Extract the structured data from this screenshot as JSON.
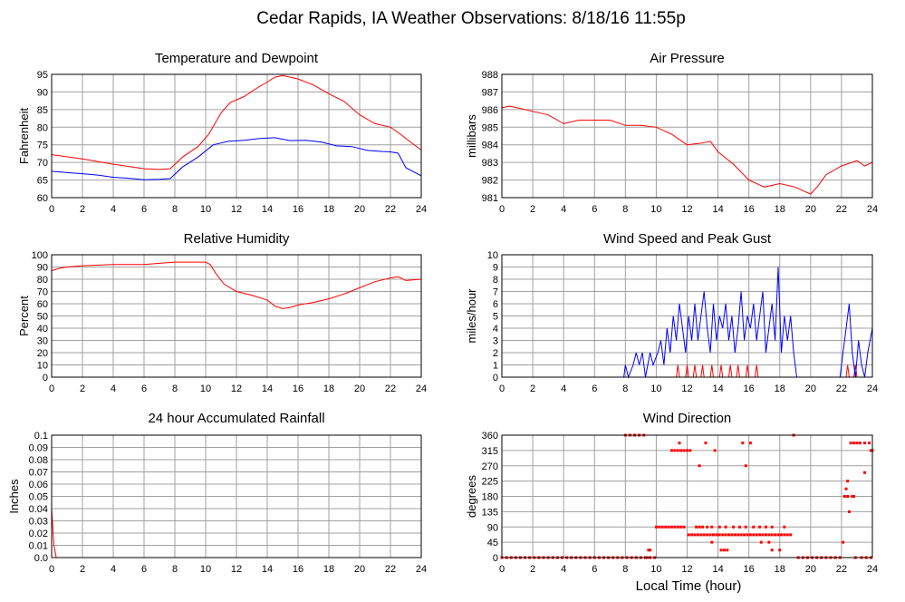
{
  "page": {
    "title": "Cedar Rapids, IA Weather Observations: 8/18/16 11:55p",
    "xlabel": "Local Time (hour)"
  },
  "colors": {
    "primary": "#ff0000",
    "secondary": "#0000ff",
    "grid": "#a0a0a0",
    "frame": "#000000"
  },
  "chart_data": [
    {
      "id": "temperature",
      "type": "line",
      "title": "Temperature and Dewpoint",
      "xlabel": "",
      "ylabel": "Fahrenheit",
      "xlim": [
        0,
        24
      ],
      "ylim": [
        60,
        95
      ],
      "xticks": [
        0,
        2,
        4,
        6,
        8,
        10,
        12,
        14,
        16,
        18,
        20,
        22,
        24
      ],
      "yticks": [
        60,
        65,
        70,
        75,
        80,
        85,
        90,
        95
      ],
      "grid": true,
      "series": [
        {
          "color": "#ff0000",
          "x": [
            0,
            2,
            4,
            6,
            7,
            7.7,
            8.5,
            9.5,
            10.2,
            11,
            11.6,
            12.5,
            13.3,
            14,
            14.5,
            15,
            15.5,
            16,
            17,
            18,
            19,
            20,
            21,
            22,
            22.5,
            23.3,
            24
          ],
          "y": [
            72.2,
            71,
            69.5,
            68.2,
            68,
            68.2,
            71.5,
            74.5,
            78,
            84,
            87,
            88.7,
            91,
            92.8,
            94.2,
            94.7,
            94.2,
            93.7,
            92,
            89.5,
            87.3,
            83.5,
            81,
            80,
            78.5,
            75.8,
            73.5
          ]
        },
        {
          "color": "#0000ff",
          "x": [
            0,
            1,
            2,
            3,
            4,
            5,
            6,
            7,
            7.7,
            8.5,
            9.5,
            10.5,
            11.5,
            12.5,
            13.5,
            14.5,
            15.5,
            16.5,
            17.5,
            18.5,
            19.5,
            20.5,
            21.5,
            22,
            22.5,
            23,
            24
          ],
          "y": [
            67.5,
            67.1,
            66.8,
            66.4,
            65.8,
            65.5,
            65.1,
            65.2,
            65.4,
            68.7,
            71.5,
            75,
            76,
            76.3,
            76.8,
            77,
            76.2,
            76.3,
            75.8,
            74.7,
            74.5,
            73.4,
            73.1,
            73,
            72.6,
            68.5,
            66.2
          ]
        }
      ]
    },
    {
      "id": "pressure",
      "type": "line",
      "title": "Air Pressure",
      "xlabel": "",
      "ylabel": "millibars",
      "xlim": [
        0,
        24
      ],
      "ylim": [
        981,
        988
      ],
      "xticks": [
        0,
        2,
        4,
        6,
        8,
        10,
        12,
        14,
        16,
        18,
        20,
        22,
        24
      ],
      "yticks": [
        981,
        982,
        983,
        984,
        985,
        986,
        987,
        988
      ],
      "grid": true,
      "series": [
        {
          "color": "#ff0000",
          "x": [
            0,
            0.5,
            1,
            2,
            3,
            4,
            5,
            6,
            7,
            8,
            9,
            10,
            11,
            12,
            13,
            13.5,
            14,
            15,
            16,
            17,
            18,
            19,
            20,
            20.5,
            21,
            22,
            23,
            23.5,
            24
          ],
          "y": [
            986.1,
            986.2,
            986.1,
            985.9,
            985.7,
            985.2,
            985.4,
            985.4,
            985.4,
            985.1,
            985.1,
            985,
            984.6,
            984,
            984.1,
            984.2,
            983.6,
            982.9,
            982,
            981.6,
            981.8,
            981.6,
            981.2,
            981.7,
            982.3,
            982.8,
            983.1,
            982.8,
            983
          ]
        }
      ]
    },
    {
      "id": "humidity",
      "type": "line",
      "title": "Relative Humidity",
      "xlabel": "",
      "ylabel": "Percent",
      "xlim": [
        0,
        24
      ],
      "ylim": [
        0,
        100
      ],
      "xticks": [
        0,
        2,
        4,
        6,
        8,
        10,
        12,
        14,
        16,
        18,
        20,
        22,
        24
      ],
      "yticks": [
        0,
        10,
        20,
        30,
        40,
        50,
        60,
        70,
        80,
        90,
        100
      ],
      "grid": true,
      "series": [
        {
          "color": "#ff0000",
          "x": [
            0,
            0.5,
            1,
            2,
            4,
            6,
            7,
            8,
            9,
            10,
            10.3,
            10.7,
            11.2,
            12,
            13,
            14,
            14.5,
            15,
            15.5,
            16,
            17,
            18,
            19,
            20,
            21,
            22,
            22.5,
            23,
            24
          ],
          "y": [
            87,
            89,
            90,
            91,
            92,
            92,
            93,
            94,
            94,
            94,
            92,
            84,
            76,
            70,
            67,
            63,
            58,
            56,
            57,
            59,
            61,
            64,
            68,
            73,
            78,
            81,
            82,
            79,
            80
          ]
        }
      ]
    },
    {
      "id": "wind",
      "type": "line",
      "title": "Wind Speed and Peak Gust",
      "xlabel": "",
      "ylabel": "miles/hour",
      "xlim": [
        0,
        24
      ],
      "ylim": [
        0,
        10
      ],
      "xticks": [
        0,
        2,
        4,
        6,
        8,
        10,
        12,
        14,
        16,
        18,
        20,
        22,
        24
      ],
      "yticks": [
        0,
        1,
        2,
        3,
        4,
        5,
        6,
        7,
        8,
        9,
        10
      ],
      "grid": true,
      "series": [
        {
          "color": "#ff0000",
          "x": [
            0,
            11.3,
            11.4,
            11.5,
            11.9,
            12,
            12.1,
            12.4,
            12.5,
            12.6,
            12.9,
            13,
            13.1,
            13.5,
            13.6,
            13.7,
            14.1,
            14.2,
            14.3,
            14.7,
            14.8,
            14.9,
            15.2,
            15.3,
            15.4,
            15.8,
            15.9,
            16,
            16.4,
            16.5,
            16.6,
            22.3,
            22.4,
            22.5,
            22.8,
            22.9,
            23,
            24
          ],
          "y": [
            0,
            0,
            1,
            0,
            0,
            1,
            0,
            0,
            1,
            0,
            0,
            1,
            0,
            0,
            1,
            0,
            0,
            1,
            0,
            0,
            1,
            0,
            0,
            1,
            0,
            0,
            1,
            0,
            0,
            1,
            0,
            0,
            1,
            0,
            0,
            1,
            0,
            0
          ]
        },
        {
          "color": "#0000ff",
          "x": [
            0,
            7.9,
            8,
            8.2,
            8.5,
            8.7,
            8.9,
            9.1,
            9.3,
            9.6,
            9.8,
            10.1,
            10.3,
            10.5,
            10.7,
            10.9,
            11.1,
            11.3,
            11.5,
            11.7,
            11.9,
            12.1,
            12.3,
            12.5,
            12.7,
            12.9,
            13.1,
            13.3,
            13.5,
            13.7,
            13.9,
            14.1,
            14.3,
            14.5,
            14.7,
            14.9,
            15.1,
            15.3,
            15.5,
            15.7,
            15.9,
            16.1,
            16.3,
            16.5,
            16.7,
            16.9,
            17.1,
            17.3,
            17.5,
            17.7,
            17.9,
            18.1,
            18.3,
            18.5,
            18.7,
            18.9,
            19.1,
            21.9,
            22.1,
            22.3,
            22.5,
            22.7,
            22.9,
            23.1,
            23.3,
            23.5,
            23.7,
            24
          ],
          "y": [
            0,
            0,
            1,
            0,
            1,
            2,
            1,
            2,
            0,
            2,
            1,
            2,
            3,
            1,
            4,
            2,
            5,
            3,
            6,
            4,
            2,
            5,
            3,
            6,
            3,
            5,
            7,
            4,
            2,
            6,
            3,
            5,
            4,
            6,
            3,
            5,
            2,
            4,
            7,
            3,
            5,
            4,
            6,
            3,
            5,
            7,
            2,
            4,
            6,
            3,
            9,
            2,
            5,
            3,
            5,
            2,
            0,
            0,
            2,
            4,
            6,
            2,
            0,
            3,
            1,
            0,
            2,
            4
          ]
        }
      ]
    },
    {
      "id": "rain",
      "type": "line",
      "title": "24 hour Accumulated Rainfall",
      "xlabel": "",
      "ylabel": "Inches",
      "xlim": [
        0,
        24
      ],
      "ylim": [
        0,
        0.1
      ],
      "xticks": [
        0,
        2,
        4,
        6,
        8,
        10,
        12,
        14,
        16,
        18,
        20,
        22,
        24
      ],
      "yticks": [
        0,
        0.01,
        0.02,
        0.03,
        0.04,
        0.05,
        0.06,
        0.07,
        0.08,
        0.09,
        0.1
      ],
      "ytick_labels": [
        "0.0",
        "0.01",
        "0.02",
        "0.03",
        "0.04",
        "0.05",
        "0.06",
        "0.07",
        "0.08",
        "0.09",
        "0.1"
      ],
      "grid": true,
      "series": [
        {
          "color": "#ff0000",
          "x": [
            0,
            0.15,
            0.3,
            24
          ],
          "y": [
            0.04,
            0.01,
            0,
            0
          ]
        }
      ]
    },
    {
      "id": "direction",
      "type": "scatter",
      "title": "Wind Direction",
      "xlabel": "Local Time (hour)",
      "ylabel": "degrees",
      "xlim": [
        0,
        24
      ],
      "ylim": [
        0,
        360
      ],
      "xticks": [
        0,
        2,
        4,
        6,
        8,
        10,
        12,
        14,
        16,
        18,
        20,
        22,
        24
      ],
      "yticks": [
        0,
        45,
        90,
        135,
        180,
        225,
        270,
        315,
        360
      ],
      "grid": true,
      "series": [
        {
          "color": "#ff0000",
          "x": [
            0,
            0.3,
            0.6,
            0.9,
            1.2,
            1.5,
            1.8,
            2.1,
            2.4,
            2.7,
            3,
            3.3,
            3.6,
            3.9,
            4.2,
            4.5,
            4.8,
            5.1,
            5.4,
            5.7,
            6,
            6.3,
            6.6,
            6.9,
            7.2,
            7.5,
            7.8,
            8.1,
            8.4,
            8.7,
            9,
            9.3,
            9.6,
            9.9,
            8,
            8.3,
            8.6,
            8.9,
            9.2,
            9.4,
            9.5,
            9.6,
            10,
            10.2,
            10.4,
            10.6,
            10.8,
            11,
            11.2,
            11.4,
            11.6,
            11.8,
            11,
            11.2,
            11.4,
            11.6,
            11.8,
            12,
            12.2,
            11.5,
            12.1,
            12.3,
            12.5,
            12.7,
            12.9,
            13.1,
            13.3,
            13.5,
            13.7,
            13.9,
            14.1,
            14.3,
            14.5,
            14.7,
            14.9,
            15.1,
            15.3,
            15.5,
            15.7,
            15.9,
            16.1,
            16.3,
            16.5,
            16.7,
            16.9,
            17.1,
            17.3,
            17.5,
            17.7,
            17.9,
            18.1,
            18.3,
            18.5,
            18.7,
            12.6,
            12.8,
            13,
            13.3,
            13.6,
            14.1,
            14.5,
            15,
            15.4,
            15.8,
            16.3,
            16.7,
            17.1,
            17.5,
            18.3,
            14.2,
            14.4,
            14.6,
            17.5,
            18,
            15.8,
            13.8,
            13.2,
            12.8,
            13.6,
            15.6,
            16.1,
            16.8,
            17.3,
            18.9,
            19.2,
            19.5,
            19.8,
            20.1,
            20.4,
            20.7,
            21,
            21.3,
            21.6,
            21.9,
            22.1,
            22.2,
            22.3,
            22.4,
            22.5,
            22.6,
            22.7,
            22.8,
            23,
            23.2,
            23.5,
            23.8,
            24,
            22.9,
            23.3,
            23.6,
            23.9,
            22.4,
            22.8,
            23.5,
            23.9
          ],
          "y": [
            0,
            0,
            0,
            0,
            0,
            0,
            0,
            0,
            0,
            0,
            0,
            0,
            0,
            0,
            0,
            0,
            0,
            0,
            0,
            0,
            0,
            0,
            0,
            0,
            0,
            0,
            0,
            0,
            0,
            0,
            0,
            0,
            0,
            0,
            360,
            360,
            360,
            360,
            360,
            0,
            22,
            22,
            90,
            90,
            90,
            90,
            90,
            90,
            90,
            90,
            90,
            90,
            315,
            315,
            315,
            315,
            315,
            315,
            315,
            337,
            67,
            67,
            67,
            67,
            67,
            67,
            67,
            67,
            67,
            67,
            67,
            67,
            67,
            67,
            67,
            67,
            67,
            67,
            67,
            67,
            67,
            67,
            67,
            67,
            67,
            67,
            67,
            67,
            67,
            67,
            67,
            67,
            67,
            67,
            90,
            90,
            90,
            90,
            90,
            90,
            90,
            90,
            90,
            90,
            90,
            90,
            90,
            90,
            90,
            22,
            22,
            22,
            22,
            22,
            270,
            315,
            337,
            270,
            45,
            337,
            337,
            45,
            45,
            360,
            0,
            0,
            0,
            0,
            0,
            0,
            0,
            0,
            0,
            0,
            45,
            180,
            202,
            225,
            135,
            337,
            180,
            337,
            337,
            337,
            337,
            337,
            315,
            0,
            0,
            0,
            0,
            180,
            180,
            250,
            315
          ]
        }
      ]
    }
  ]
}
